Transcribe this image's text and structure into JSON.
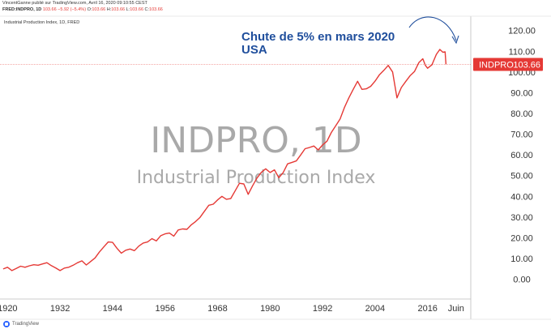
{
  "header": {
    "line1": "VincentGanne publié sur TradingView.com, Avril 16, 2020 09:10:55 CEST",
    "symbol": "FRED:INDPRO, 1D",
    "last": "103.66",
    "change": "−5.92 (−5.4%)",
    "open_label": "O:",
    "open": "103.66",
    "high_label": "H:",
    "high": "103.66",
    "low_label": "L:",
    "low": "103.66",
    "close_label": "C:",
    "close": "103.66"
  },
  "chart_title_small": "Industrial Production Index, 1D, FRED",
  "watermark": {
    "main": "INDPRO, 1D",
    "sub": "Industrial Production Index"
  },
  "annotation": {
    "line1": "Chute de 5% en mars 2020",
    "line2": "USA"
  },
  "price_tag": {
    "label": "INDPRO",
    "value": "103.66"
  },
  "footer": {
    "brand": "TradingView"
  },
  "colors": {
    "series": "#e53935",
    "annotation": "#1f4e9c",
    "watermark": "#a9a9a9",
    "grid_text": "#333333"
  },
  "chart_data": {
    "type": "line",
    "title": "Industrial Production Index",
    "series_name": "INDPRO",
    "x_ticks": [
      "1920",
      "1932",
      "1944",
      "1956",
      "1968",
      "1980",
      "1992",
      "2004",
      "2016",
      "Juin"
    ],
    "x_tick_years": [
      1920,
      1932,
      1944,
      1956,
      1968,
      1980,
      1992,
      2004,
      2016,
      2022.5
    ],
    "y_ticks": [
      "0.00",
      "10.00",
      "20.00",
      "30.00",
      "40.00",
      "50.00",
      "60.00",
      "70.00",
      "80.00",
      "90.00",
      "100.00",
      "110.00",
      "120.00"
    ],
    "ylim": [
      -6,
      123
    ],
    "xlim": [
      1919.2,
      2025.5
    ],
    "points": [
      [
        1919.0,
        5.0
      ],
      [
        1920.0,
        5.8
      ],
      [
        1921.0,
        4.2
      ],
      [
        1922.0,
        5.2
      ],
      [
        1923.0,
        6.3
      ],
      [
        1924.0,
        5.8
      ],
      [
        1925.0,
        6.5
      ],
      [
        1926.0,
        7.0
      ],
      [
        1927.0,
        6.8
      ],
      [
        1928.0,
        7.4
      ],
      [
        1929.0,
        8.0
      ],
      [
        1930.0,
        6.6
      ],
      [
        1931.0,
        5.5
      ],
      [
        1932.0,
        4.2
      ],
      [
        1933.0,
        5.4
      ],
      [
        1934.0,
        5.8
      ],
      [
        1935.0,
        6.8
      ],
      [
        1936.0,
        8.0
      ],
      [
        1937.0,
        8.9
      ],
      [
        1938.0,
        6.9
      ],
      [
        1939.0,
        8.6
      ],
      [
        1940.0,
        10.3
      ],
      [
        1941.0,
        13.2
      ],
      [
        1942.0,
        15.6
      ],
      [
        1943.0,
        18.0
      ],
      [
        1944.0,
        17.8
      ],
      [
        1945.0,
        15.0
      ],
      [
        1946.0,
        12.6
      ],
      [
        1947.0,
        14.0
      ],
      [
        1948.0,
        14.6
      ],
      [
        1949.0,
        13.8
      ],
      [
        1950.0,
        16.0
      ],
      [
        1951.0,
        17.5
      ],
      [
        1952.0,
        18.0
      ],
      [
        1953.0,
        19.6
      ],
      [
        1954.0,
        18.5
      ],
      [
        1955.0,
        21.0
      ],
      [
        1956.0,
        21.9
      ],
      [
        1957.0,
        22.3
      ],
      [
        1958.0,
        20.8
      ],
      [
        1959.0,
        23.8
      ],
      [
        1960.0,
        24.3
      ],
      [
        1961.0,
        24.1
      ],
      [
        1962.0,
        26.3
      ],
      [
        1963.0,
        27.9
      ],
      [
        1964.0,
        29.9
      ],
      [
        1965.0,
        32.8
      ],
      [
        1966.0,
        35.7
      ],
      [
        1967.0,
        36.2
      ],
      [
        1968.0,
        38.3
      ],
      [
        1969.0,
        40.0
      ],
      [
        1970.0,
        38.6
      ],
      [
        1971.0,
        38.9
      ],
      [
        1972.0,
        42.6
      ],
      [
        1973.0,
        46.3
      ],
      [
        1974.0,
        46.0
      ],
      [
        1975.0,
        41.0
      ],
      [
        1976.0,
        45.1
      ],
      [
        1977.0,
        48.8
      ],
      [
        1978.0,
        51.6
      ],
      [
        1979.0,
        53.3
      ],
      [
        1980.0,
        51.5
      ],
      [
        1981.0,
        52.8
      ],
      [
        1982.0,
        49.0
      ],
      [
        1983.0,
        51.5
      ],
      [
        1984.0,
        55.7
      ],
      [
        1985.0,
        56.4
      ],
      [
        1986.0,
        57.1
      ],
      [
        1987.0,
        60.0
      ],
      [
        1988.0,
        63.0
      ],
      [
        1989.0,
        63.6
      ],
      [
        1990.0,
        64.3
      ],
      [
        1991.0,
        62.4
      ],
      [
        1992.0,
        64.8
      ],
      [
        1993.0,
        66.6
      ],
      [
        1994.0,
        70.8
      ],
      [
        1995.0,
        74.0
      ],
      [
        1996.0,
        77.3
      ],
      [
        1997.0,
        82.9
      ],
      [
        1998.0,
        87.5
      ],
      [
        1999.0,
        91.6
      ],
      [
        2000.0,
        95.5
      ],
      [
        2001.0,
        91.6
      ],
      [
        2002.0,
        91.9
      ],
      [
        2003.0,
        93.1
      ],
      [
        2004.0,
        95.6
      ],
      [
        2005.0,
        98.7
      ],
      [
        2006.0,
        100.8
      ],
      [
        2007.0,
        103.2
      ],
      [
        2008.0,
        100.0
      ],
      [
        2009.0,
        87.5
      ],
      [
        2009.5,
        90.0
      ],
      [
        2010.0,
        92.5
      ],
      [
        2011.0,
        95.4
      ],
      [
        2012.0,
        98.2
      ],
      [
        2013.0,
        100.2
      ],
      [
        2014.0,
        104.5
      ],
      [
        2014.9,
        106.4
      ],
      [
        2015.5,
        103.2
      ],
      [
        2016.0,
        101.8
      ],
      [
        2017.0,
        103.5
      ],
      [
        2018.0,
        108.5
      ],
      [
        2018.8,
        110.9
      ],
      [
        2019.5,
        109.5
      ],
      [
        2020.0,
        109.7
      ],
      [
        2020.2,
        103.66
      ]
    ]
  }
}
